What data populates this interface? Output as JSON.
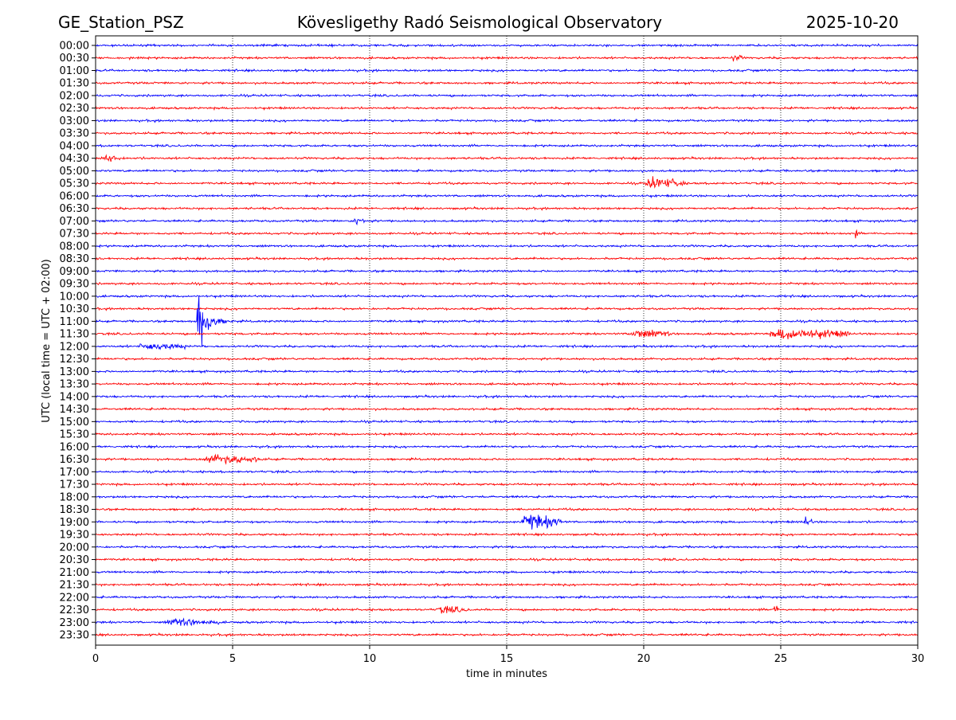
{
  "header": {
    "station": "GE_Station_PSZ",
    "title": "Kövesligethy Radó Seismological Observatory",
    "date": "2025-10-20"
  },
  "chart_data": {
    "type": "line",
    "title": "Kövesligethy Radó Seismological Observatory",
    "xlabel": "time in minutes",
    "ylabel": "UTC (local time = UTC + 02:00)",
    "xlim": [
      0,
      30
    ],
    "xticks": [
      0,
      5,
      10,
      15,
      20,
      25,
      30
    ],
    "grid": "vertical dotted at x ticks",
    "row_labels": [
      "00:00",
      "00:30",
      "01:00",
      "01:30",
      "02:00",
      "02:30",
      "03:00",
      "03:30",
      "04:00",
      "04:30",
      "05:00",
      "05:30",
      "06:00",
      "06:30",
      "07:00",
      "07:30",
      "08:00",
      "08:30",
      "09:00",
      "09:30",
      "10:00",
      "10:30",
      "11:00",
      "11:30",
      "12:00",
      "12:30",
      "13:00",
      "13:30",
      "14:00",
      "14:30",
      "15:00",
      "15:30",
      "16:00",
      "16:30",
      "17:00",
      "17:30",
      "18:00",
      "18:30",
      "19:00",
      "19:30",
      "20:00",
      "20:30",
      "21:00",
      "21:30",
      "22:00",
      "22:30",
      "23:00",
      "23:30"
    ],
    "row_colors": [
      "#0000ff",
      "#ff0000"
    ],
    "noise_amplitude": 0.06,
    "events": [
      {
        "row": "00:30",
        "minute": 23.2,
        "duration": 0.4,
        "amplitude": 0.2
      },
      {
        "row": "04:30",
        "minute": 0.2,
        "duration": 0.7,
        "amplitude": 0.25
      },
      {
        "row": "05:30",
        "minute": 20.0,
        "duration": 1.5,
        "amplitude": 0.35
      },
      {
        "row": "07:00",
        "minute": 9.4,
        "duration": 0.5,
        "amplitude": 0.2
      },
      {
        "row": "07:30",
        "minute": 27.7,
        "duration": 0.1,
        "amplitude": 0.35
      },
      {
        "row": "11:00",
        "minute": 3.7,
        "duration": 1.5,
        "amplitude": 2.4
      },
      {
        "row": "11:30",
        "minute": 19.4,
        "duration": 1.6,
        "amplitude": 0.25
      },
      {
        "row": "11:30",
        "minute": 24.5,
        "duration": 3.0,
        "amplitude": 0.35
      },
      {
        "row": "12:00",
        "minute": 1.5,
        "duration": 1.8,
        "amplitude": 0.2
      },
      {
        "row": "16:30",
        "minute": 3.9,
        "duration": 2.2,
        "amplitude": 0.25
      },
      {
        "row": "19:00",
        "minute": 15.5,
        "duration": 1.5,
        "amplitude": 0.5
      },
      {
        "row": "19:00",
        "minute": 25.8,
        "duration": 0.4,
        "amplitude": 0.3
      },
      {
        "row": "22:30",
        "minute": 12.4,
        "duration": 1.2,
        "amplitude": 0.2
      },
      {
        "row": "22:30",
        "minute": 24.7,
        "duration": 0.2,
        "amplitude": 0.35
      },
      {
        "row": "23:00",
        "minute": 2.5,
        "duration": 2.0,
        "amplitude": 0.2
      }
    ]
  }
}
